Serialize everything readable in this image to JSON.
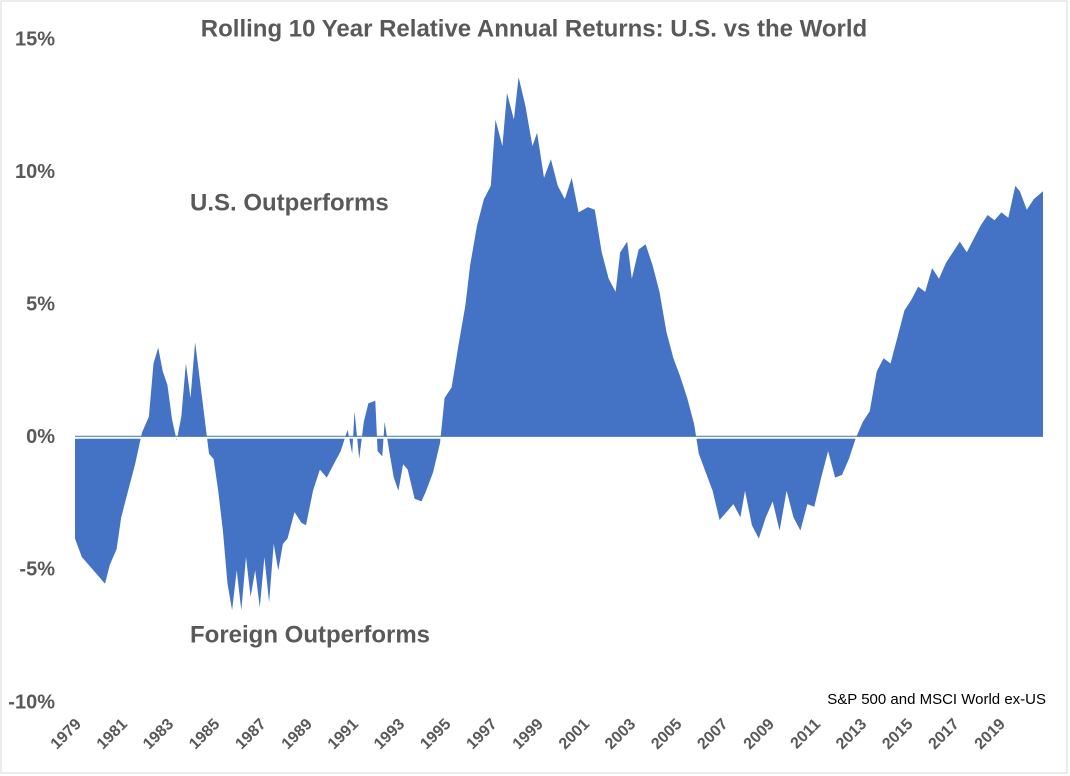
{
  "chart_data": {
    "type": "area",
    "title": "Rolling 10 Year Relative Annual Returns: U.S. vs the World",
    "annotations": [
      "U.S. Outperforms",
      "Foreign Outperforms",
      "S&P 500 and MSCI World ex-US"
    ],
    "color": "#4472c4",
    "x": [
      1979.0,
      1979.3,
      1979.6,
      1980.0,
      1980.3,
      1980.5,
      1980.8,
      1981.0,
      1981.3,
      1981.6,
      1981.9,
      1982.2,
      1982.4,
      1982.6,
      1982.8,
      1983.0,
      1983.2,
      1983.4,
      1983.6,
      1983.8,
      1984.0,
      1984.2,
      1984.4,
      1984.6,
      1984.8,
      1985.0,
      1985.2,
      1985.4,
      1985.6,
      1985.8,
      1986.0,
      1986.2,
      1986.4,
      1986.6,
      1986.8,
      1987.0,
      1987.2,
      1987.4,
      1987.6,
      1987.8,
      1988.0,
      1988.2,
      1988.5,
      1988.8,
      1989.0,
      1989.3,
      1989.6,
      1989.9,
      1990.2,
      1990.5,
      1990.8,
      1991.0,
      1991.1,
      1991.3,
      1991.5,
      1991.7,
      1992.0,
      1992.1,
      1992.3,
      1992.4,
      1992.6,
      1992.8,
      1993.0,
      1993.2,
      1993.4,
      1993.7,
      1994.0,
      1994.2,
      1994.5,
      1994.8,
      1995.0,
      1995.3,
      1995.6,
      1995.9,
      1996.1,
      1996.4,
      1996.7,
      1997.0,
      1997.2,
      1997.5,
      1997.7,
      1998.0,
      1998.2,
      1998.5,
      1998.8,
      1999.0,
      1999.3,
      1999.6,
      1999.9,
      2000.2,
      2000.5,
      2000.8,
      2001.2,
      2001.5,
      2001.8,
      2002.1,
      2002.4,
      2002.6,
      2002.9,
      2003.1,
      2003.4,
      2003.7,
      2004.0,
      2004.3,
      2004.6,
      2004.9,
      2005.2,
      2005.5,
      2005.8,
      2006.0,
      2006.3,
      2006.6,
      2006.9,
      2007.2,
      2007.5,
      2007.8,
      2008.0,
      2008.3,
      2008.6,
      2008.9,
      2009.2,
      2009.5,
      2009.8,
      2010.1,
      2010.4,
      2010.7,
      2011.0,
      2011.3,
      2011.6,
      2011.9,
      2012.2,
      2012.5,
      2012.8,
      2013.1,
      2013.4,
      2013.7,
      2014.0,
      2014.3,
      2014.6,
      2014.9,
      2015.2,
      2015.5,
      2015.8,
      2016.1,
      2016.4,
      2016.7,
      2017.0,
      2017.3,
      2017.6,
      2017.9,
      2018.2,
      2018.5,
      2018.8,
      2019.1,
      2019.4,
      2019.7,
      2019.9,
      2020.2,
      2020.5,
      2020.9
    ],
    "values": [
      -3.8,
      -4.5,
      -4.8,
      -5.2,
      -5.5,
      -4.8,
      -4.2,
      -3.0,
      -2.0,
      -1.0,
      0.2,
      0.8,
      2.8,
      3.4,
      2.5,
      2.0,
      0.7,
      -0.1,
      0.8,
      2.8,
      1.5,
      3.6,
      2.2,
      0.8,
      -0.6,
      -0.8,
      -2.0,
      -3.5,
      -5.5,
      -6.5,
      -5.0,
      -6.5,
      -4.5,
      -6.0,
      -5.0,
      -6.4,
      -4.5,
      -6.2,
      -4.0,
      -5.0,
      -4.0,
      -3.8,
      -2.8,
      -3.2,
      -3.3,
      -2.0,
      -1.2,
      -1.5,
      -1.0,
      -0.5,
      0.3,
      -0.6,
      1.0,
      -0.8,
      0.6,
      1.3,
      1.4,
      -0.5,
      -0.7,
      0.6,
      -0.5,
      -1.5,
      -2.0,
      -1.0,
      -1.2,
      -2.3,
      -2.4,
      -2.0,
      -1.3,
      -0.2,
      1.5,
      1.9,
      3.5,
      5.0,
      6.5,
      8.0,
      9.0,
      9.5,
      12.0,
      11.0,
      13.0,
      12.0,
      13.6,
      12.5,
      11.0,
      11.5,
      9.8,
      10.5,
      9.5,
      9.0,
      9.8,
      8.5,
      8.7,
      8.6,
      7.0,
      6.0,
      5.5,
      7.0,
      7.4,
      6.0,
      7.1,
      7.3,
      6.5,
      5.5,
      4.0,
      3.0,
      2.3,
      1.5,
      0.5,
      -0.6,
      -1.3,
      -2.0,
      -3.1,
      -2.8,
      -2.5,
      -3.0,
      -2.0,
      -3.3,
      -3.8,
      -3.0,
      -2.4,
      -3.5,
      -2.0,
      -3.0,
      -3.5,
      -2.5,
      -2.6,
      -1.5,
      -0.5,
      -1.5,
      -1.4,
      -0.8,
      0.0,
      0.6,
      1.0,
      2.5,
      3.0,
      2.8,
      3.8,
      4.8,
      5.2,
      5.7,
      5.5,
      6.4,
      6.0,
      6.6,
      7.0,
      7.4,
      7.0,
      7.5,
      8.0,
      8.4,
      8.2,
      8.5,
      8.3,
      9.5,
      9.3,
      8.6,
      9.0,
      9.3
    ],
    "xlim": [
      1979,
      2020.9
    ],
    "xticks": [
      1979,
      1981,
      1983,
      1985,
      1987,
      1989,
      1991,
      1993,
      1995,
      1997,
      1999,
      2001,
      2003,
      2005,
      2007,
      2009,
      2011,
      2013,
      2015,
      2017,
      2019
    ],
    "ylim": [
      -10,
      15
    ],
    "yticks": [
      {
        "value": -10,
        "label": "-10%"
      },
      {
        "value": -5,
        "label": "-5%"
      },
      {
        "value": 0,
        "label": "0%"
      },
      {
        "value": 5,
        "label": "5%"
      },
      {
        "value": 10,
        "label": "10%"
      },
      {
        "value": 15,
        "label": "15%"
      }
    ]
  }
}
